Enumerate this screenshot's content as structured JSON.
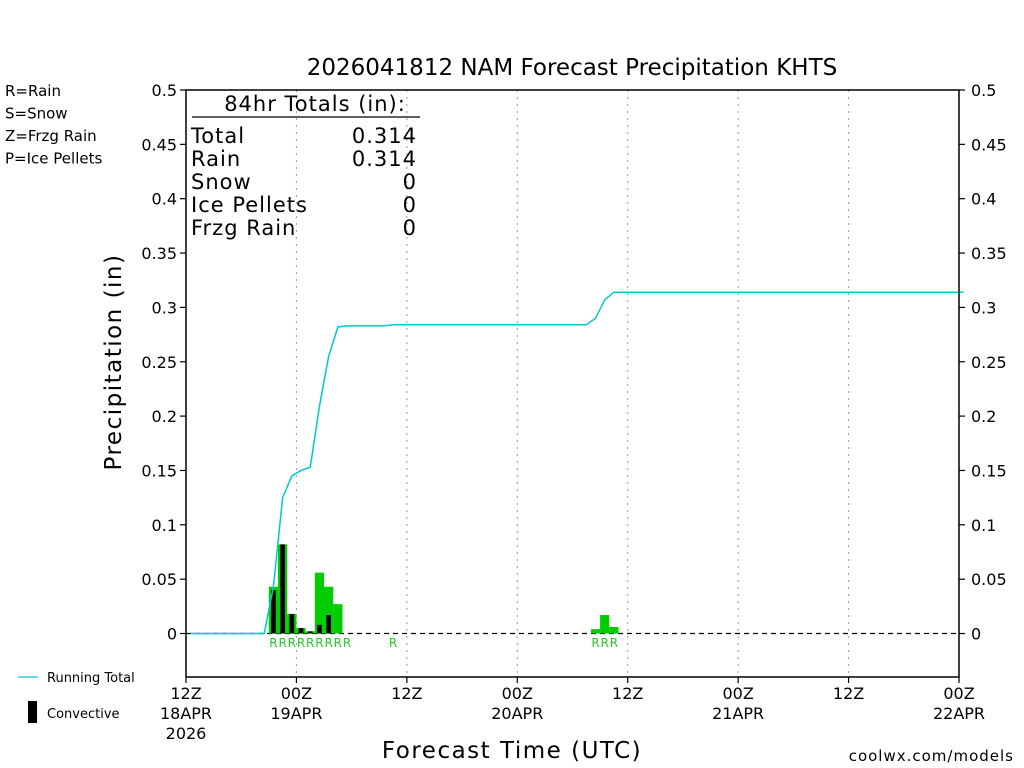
{
  "chart_data": {
    "type": "bar",
    "title": "2026041812 NAM Forecast Precipitation KHTS",
    "xlabel": "Forecast Time (UTC)",
    "ylabel": "Precipitation (in)",
    "ylim": [
      -0.04,
      0.5
    ],
    "xlim_hours": [
      0,
      84
    ],
    "y_ticks": [
      "0",
      "0.05",
      "0.1",
      "0.15",
      "0.2",
      "0.25",
      "0.3",
      "0.35",
      "0.4",
      "0.45",
      "0.5"
    ],
    "x_ticks": [
      {
        "hour": 0,
        "label": "12Z",
        "date": "18APR",
        "year": "2026"
      },
      {
        "hour": 12,
        "label": "00Z",
        "date": "19APR",
        "year": ""
      },
      {
        "hour": 24,
        "label": "12Z",
        "date": "",
        "year": ""
      },
      {
        "hour": 36,
        "label": "00Z",
        "date": "20APR",
        "year": ""
      },
      {
        "hour": 48,
        "label": "12Z",
        "date": "",
        "year": ""
      },
      {
        "hour": 60,
        "label": "00Z",
        "date": "21APR",
        "year": ""
      },
      {
        "hour": 72,
        "label": "12Z",
        "date": "",
        "year": ""
      },
      {
        "hour": 84,
        "label": "00Z",
        "date": "22APR",
        "year": ""
      }
    ],
    "grid_hours": [
      12,
      24,
      36,
      48,
      60,
      72
    ],
    "precip_bars": [
      {
        "hour": 9,
        "total": 0.043,
        "convective": 0.04
      },
      {
        "hour": 10,
        "total": 0.082,
        "convective": 0.082
      },
      {
        "hour": 11,
        "total": 0.018,
        "convective": 0.018
      },
      {
        "hour": 12,
        "total": 0.005,
        "convective": 0.005
      },
      {
        "hour": 13,
        "total": 0.002,
        "convective": 0.002
      },
      {
        "hour": 14,
        "total": 0.056,
        "convective": 0.008
      },
      {
        "hour": 15,
        "total": 0.043,
        "convective": 0.017
      },
      {
        "hour": 16,
        "total": 0.027,
        "convective": 0.0
      },
      {
        "hour": 44,
        "total": 0.004,
        "convective": 0.0
      },
      {
        "hour": 45,
        "total": 0.017,
        "convective": 0.0
      },
      {
        "hour": 46,
        "total": 0.006,
        "convective": 0.0
      }
    ],
    "running_total": {
      "hours": [
        0,
        8,
        9,
        10,
        11,
        12,
        13,
        14,
        15,
        16,
        17,
        18,
        20,
        21,
        22,
        24,
        36,
        43,
        44,
        45,
        46,
        84
      ],
      "values": [
        0,
        0,
        0.043,
        0.125,
        0.145,
        0.15,
        0.153,
        0.209,
        0.255,
        0.282,
        0.283,
        0.283,
        0.283,
        0.283,
        0.284,
        0.284,
        0.284,
        0.284,
        0.29,
        0.307,
        0.314,
        0.314
      ]
    },
    "precip_type_markers": [
      {
        "hour": 9,
        "type": "R"
      },
      {
        "hour": 10,
        "type": "R"
      },
      {
        "hour": 11,
        "type": "R"
      },
      {
        "hour": 12,
        "type": "R"
      },
      {
        "hour": 13,
        "type": "R"
      },
      {
        "hour": 14,
        "type": "R"
      },
      {
        "hour": 15,
        "type": "R"
      },
      {
        "hour": 16,
        "type": "R"
      },
      {
        "hour": 17,
        "type": "R"
      },
      {
        "hour": 22,
        "type": "R"
      },
      {
        "hour": 44,
        "type": "R"
      },
      {
        "hour": 45,
        "type": "R"
      },
      {
        "hour": 46,
        "type": "R"
      }
    ],
    "totals_box": {
      "header": "84hr Totals (in):",
      "rows": [
        {
          "label": "Total",
          "value": "0.314"
        },
        {
          "label": "Rain",
          "value": "0.314"
        },
        {
          "label": "Snow",
          "value": "0"
        },
        {
          "label": "Ice Pellets",
          "value": "0"
        },
        {
          "label": "Frzg Rain",
          "value": "0"
        }
      ]
    },
    "type_legend": [
      {
        "text": "R=Rain",
        "color": "#22cc22"
      },
      {
        "text": "S=Snow",
        "color": "#3344ee"
      },
      {
        "text": "Z=Frzg Rain",
        "color": "#ff8833"
      },
      {
        "text": "P=Ice Pellets",
        "color": "#ee1188"
      }
    ],
    "series_legend": {
      "running_total": "Running Total",
      "convective": "Convective"
    },
    "credit": "coolwx.com/models",
    "colors": {
      "total_bar": "#00cc00",
      "convective_bar": "#000000",
      "running_total": "#00c8d0",
      "rain_marker": "#22cc22",
      "credit": "#e03030"
    }
  }
}
